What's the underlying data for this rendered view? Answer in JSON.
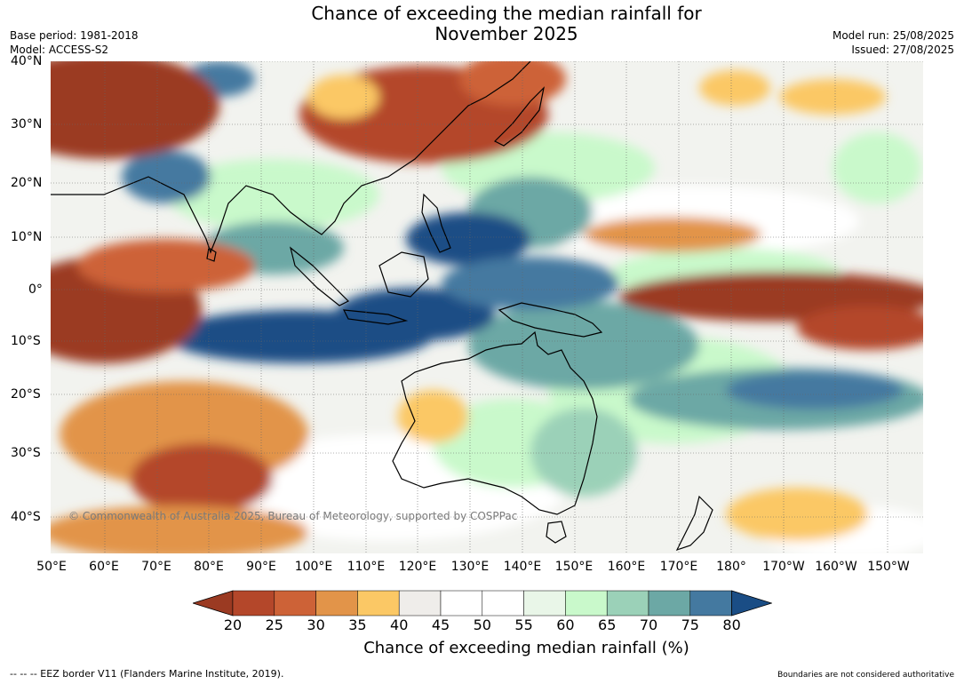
{
  "title": {
    "line1": "Chance of exceeding the median rainfall for",
    "line2": "November 2025"
  },
  "meta_left": {
    "base_period": "Base period: 1981-2018",
    "model": "Model: ACCESS-S2"
  },
  "meta_right": {
    "model_run": "Model run: 25/08/2025",
    "issued": "Issued: 27/08/2025"
  },
  "latitude_labels": [
    "40°N",
    "30°N",
    "20°N",
    "10°N",
    "0°",
    "10°S",
    "20°S",
    "30°S",
    "40°S"
  ],
  "longitude_labels": [
    "50°E",
    "60°E",
    "70°E",
    "80°E",
    "90°E",
    "100°E",
    "110°E",
    "120°E",
    "130°E",
    "140°E",
    "150°E",
    "160°E",
    "170°E",
    "180°",
    "170°W",
    "160°W",
    "150°W"
  ],
  "copyright": "© Commonwealth of Australia 2025, Bureau of Meteorology, supported by COSPPac",
  "colorbar": {
    "label": "Chance of exceeding median rainfall (%)",
    "ticks": [
      "20",
      "25",
      "30",
      "35",
      "40",
      "45",
      "50",
      "55",
      "60",
      "65",
      "70",
      "75",
      "80"
    ],
    "colors": [
      "#9b3a22",
      "#b4472a",
      "#cd6237",
      "#e29449",
      "#fbc865",
      "#efedea",
      "#ffffff",
      "#ffffff",
      "#e9f6e8",
      "#c9f9cb",
      "#9bd1b8",
      "#6ca8a5",
      "#4479a0",
      "#1a4d85"
    ]
  },
  "footer": {
    "eez_note": "--  --  -- EEZ border V11 (Flanders Marine Institute, 2019).",
    "boundaries_note": "Boundaries are not considered authoritative"
  }
}
